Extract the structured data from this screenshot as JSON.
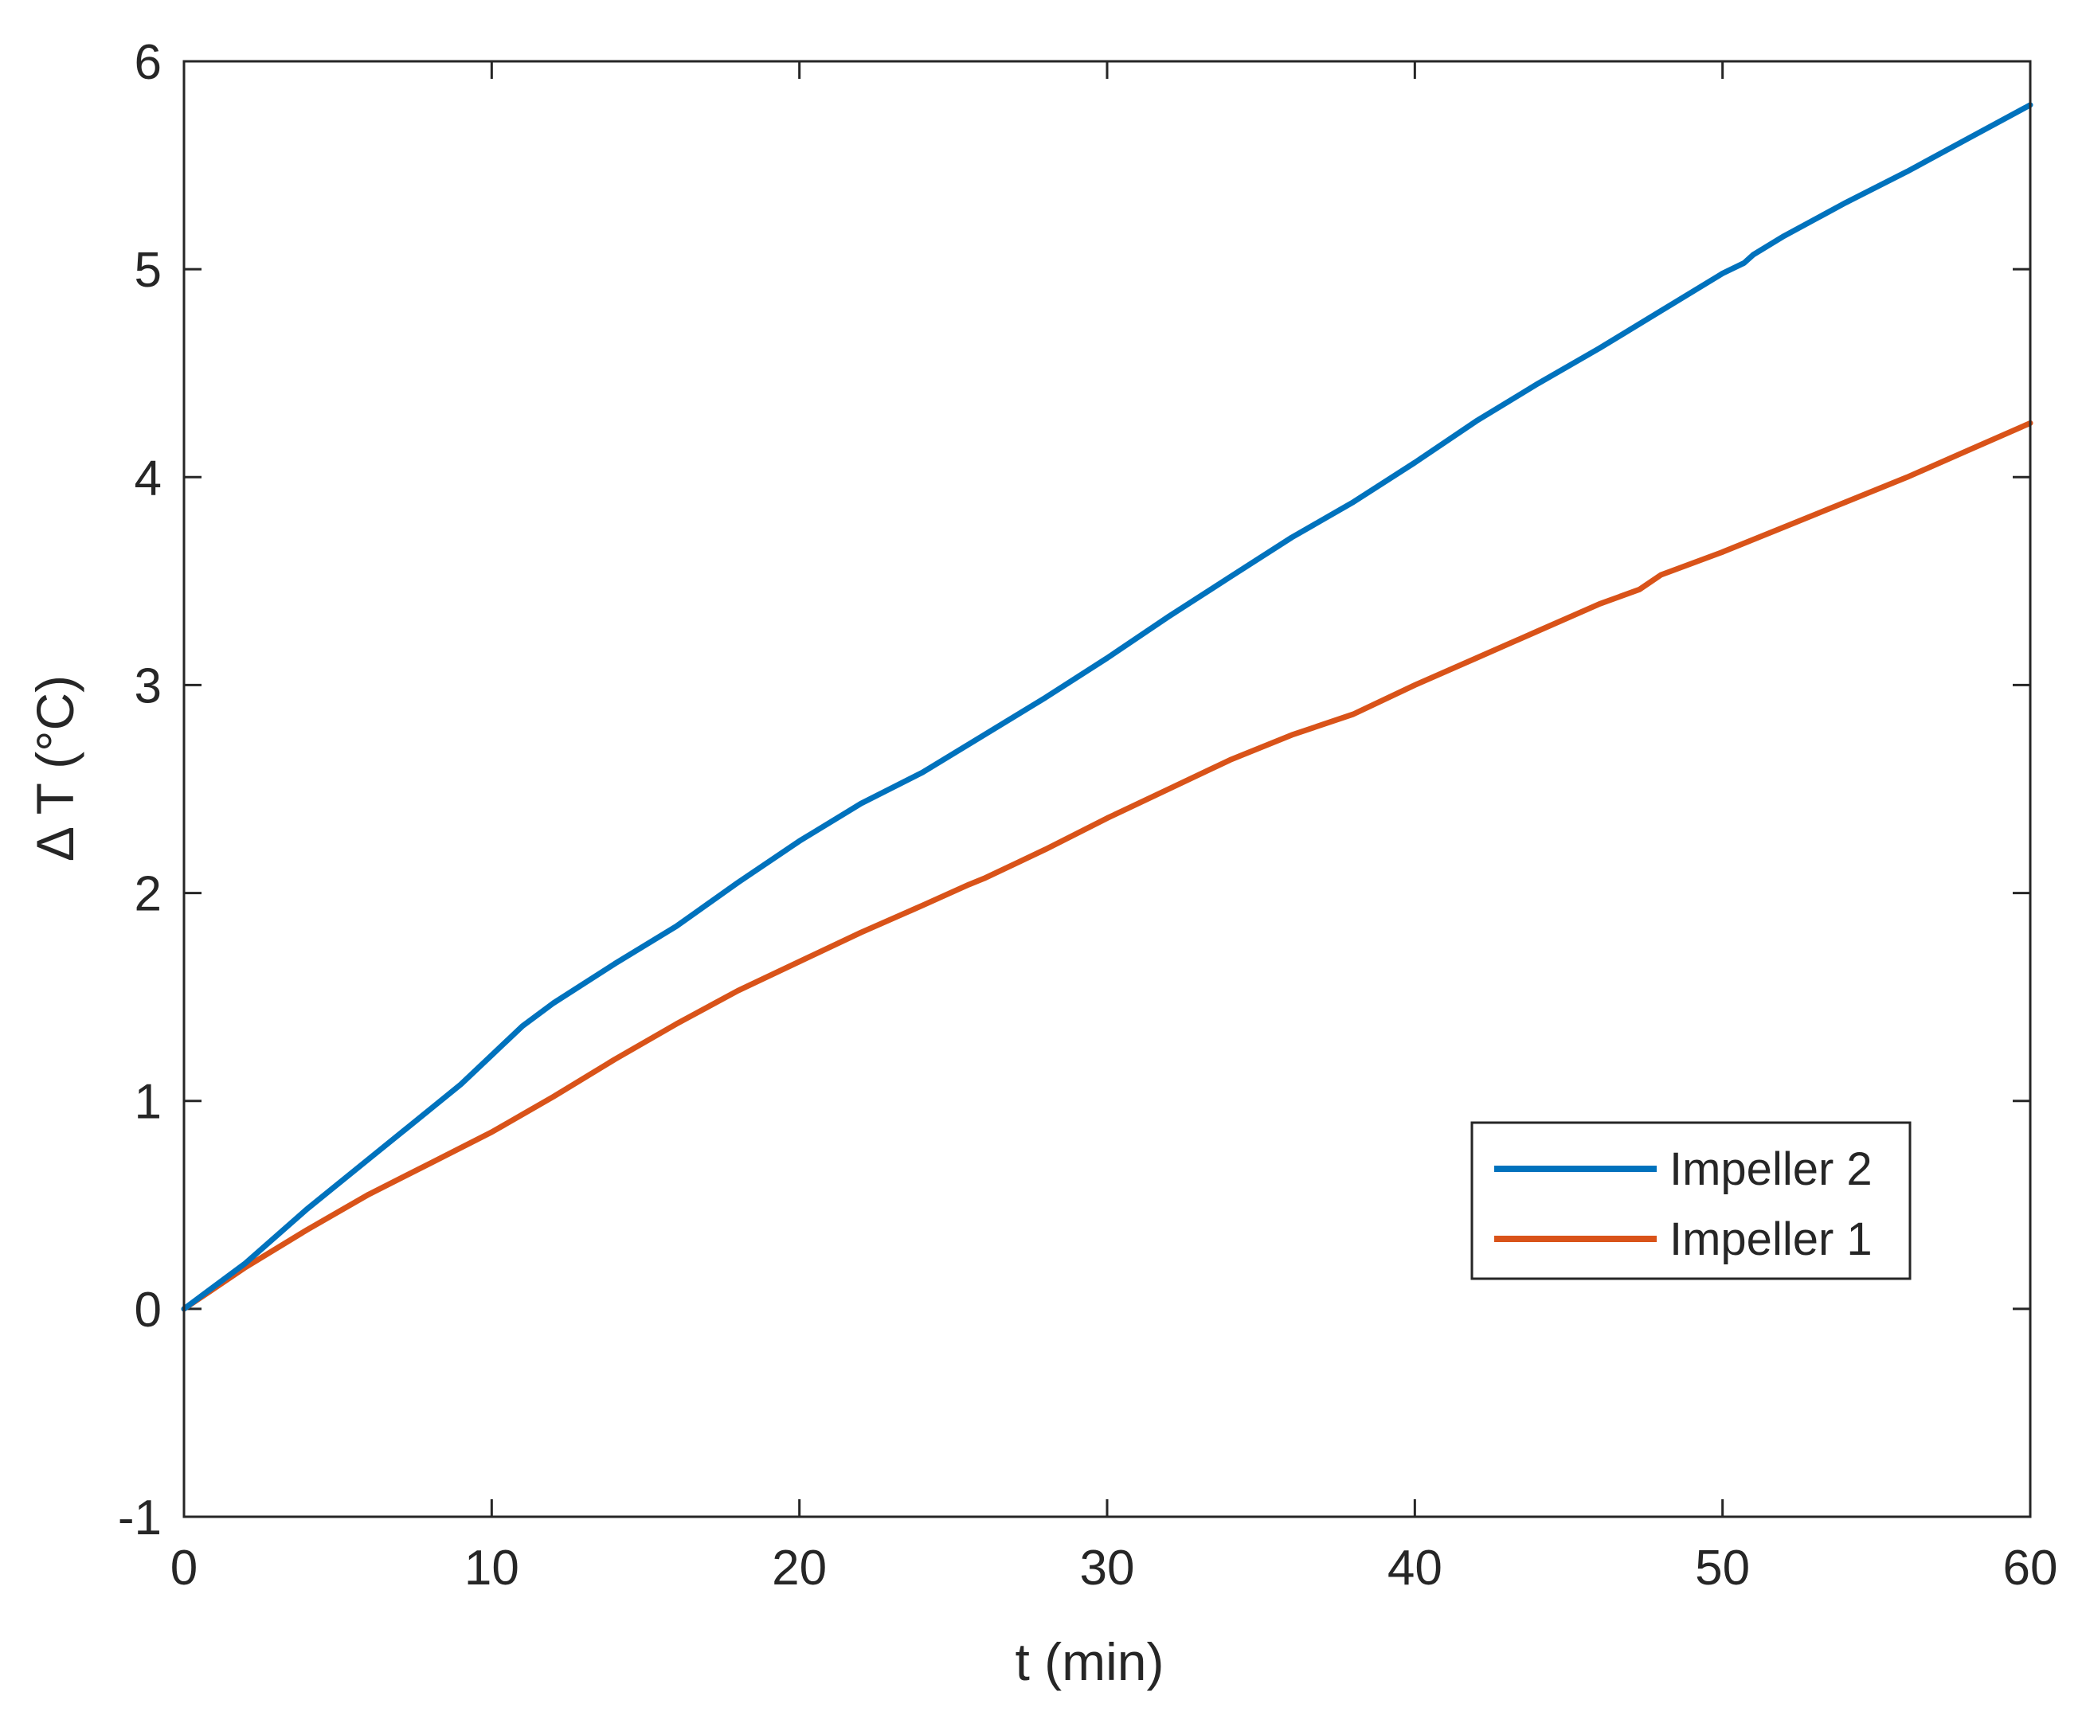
{
  "chart_data": {
    "type": "line",
    "xlabel": "t (min)",
    "ylabel": "Δ T (°C)",
    "xlim": [
      0,
      60
    ],
    "ylim": [
      -1,
      6
    ],
    "xticks": [
      0,
      10,
      20,
      30,
      40,
      50,
      60
    ],
    "yticks": [
      -1,
      0,
      1,
      2,
      3,
      4,
      5,
      6
    ],
    "xtick_labels": [
      "0",
      "10",
      "20",
      "30",
      "40",
      "50",
      "60"
    ],
    "ytick_labels": [
      "-1",
      "0",
      "1",
      "2",
      "3",
      "4",
      "5",
      "6"
    ],
    "grid": false,
    "legend_position": "lower-right",
    "series": [
      {
        "name": "Impeller 2",
        "color": "#0072BD",
        "x": [
          0,
          2,
          4,
          6,
          8,
          9,
          10,
          11,
          12,
          14,
          16,
          18,
          20,
          22,
          24,
          26,
          28,
          30,
          32,
          34,
          36,
          38,
          40,
          42,
          44,
          46,
          48,
          50,
          50.7,
          51,
          52,
          54,
          56,
          58,
          60
        ],
        "y": [
          0,
          0.22,
          0.48,
          0.72,
          0.96,
          1.08,
          1.22,
          1.36,
          1.47,
          1.66,
          1.84,
          2.05,
          2.25,
          2.43,
          2.58,
          2.76,
          2.94,
          3.13,
          3.33,
          3.52,
          3.71,
          3.88,
          4.07,
          4.27,
          4.45,
          4.62,
          4.8,
          4.98,
          5.03,
          5.07,
          5.16,
          5.32,
          5.47,
          5.63,
          5.79
        ]
      },
      {
        "name": "Impeller 1",
        "color": "#D95319",
        "x": [
          0,
          2,
          4,
          6,
          8,
          10,
          12,
          14,
          16,
          18,
          20,
          22,
          24,
          25.5,
          26,
          28,
          30,
          32,
          34,
          36,
          38,
          40,
          42,
          44,
          46,
          47.3,
          48,
          50,
          52,
          54,
          56,
          58,
          60
        ],
        "y": [
          0,
          0.2,
          0.38,
          0.55,
          0.7,
          0.85,
          1.02,
          1.2,
          1.37,
          1.53,
          1.67,
          1.81,
          1.94,
          2.04,
          2.07,
          2.21,
          2.36,
          2.5,
          2.64,
          2.76,
          2.86,
          3.0,
          3.13,
          3.26,
          3.39,
          3.46,
          3.53,
          3.64,
          3.76,
          3.88,
          4.0,
          4.13,
          4.26
        ]
      }
    ]
  }
}
